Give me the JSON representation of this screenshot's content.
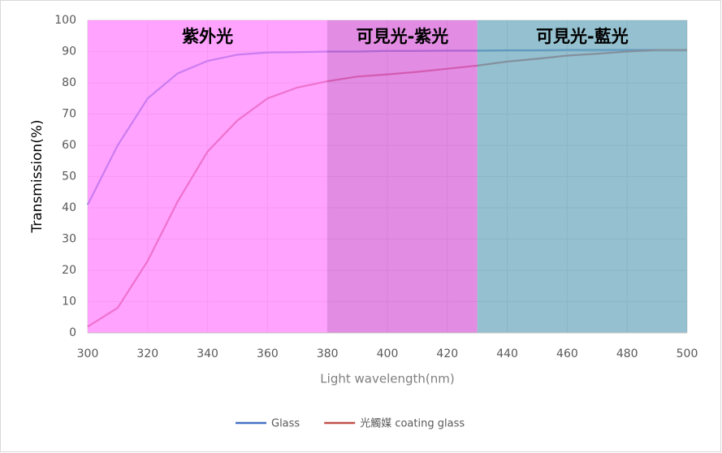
{
  "chart_data": {
    "type": "line",
    "x_label": "Light wavelength(nm)",
    "y_label": "Transmission(%)",
    "x": [
      300,
      310,
      320,
      330,
      340,
      350,
      360,
      370,
      380,
      390,
      400,
      410,
      420,
      430,
      440,
      450,
      460,
      470,
      480,
      490,
      500
    ],
    "series": [
      {
        "name": "Glass",
        "color": "#4472c4",
        "values": [
          41,
          60,
          75,
          83,
          87,
          89,
          89.7,
          89.8,
          90,
          90,
          90.2,
          90.2,
          90.3,
          90.3,
          90.4,
          90.4,
          90.5,
          90.5,
          90.5,
          90.5,
          90.5
        ]
      },
      {
        "name": "光觸媒 coating glass",
        "color": "#c0504d",
        "values": [
          2,
          8,
          23,
          42,
          58,
          68,
          75,
          78.5,
          80.5,
          82,
          82.7,
          83.5,
          84.5,
          85.5,
          86.8,
          87.7,
          88.7,
          89.3,
          90,
          90.5,
          90.5
        ]
      }
    ],
    "regions": [
      {
        "label": "紫外光",
        "start": 300,
        "end": 380,
        "color": "#ff80ff"
      },
      {
        "label": "可見光-紫光",
        "start": 380,
        "end": 430,
        "color": "#d860d8"
      },
      {
        "label": "可見光-藍光",
        "start": 430,
        "end": 500,
        "color": "#6ba8bc"
      }
    ],
    "xlim": [
      300,
      500
    ],
    "xticks": [
      300,
      320,
      340,
      360,
      380,
      400,
      420,
      440,
      460,
      480,
      500
    ],
    "ylim": [
      0,
      100
    ],
    "yticks": [
      0,
      10,
      20,
      30,
      40,
      50,
      60,
      70,
      80,
      90,
      100
    ],
    "grid": true,
    "legend": "bottom"
  }
}
